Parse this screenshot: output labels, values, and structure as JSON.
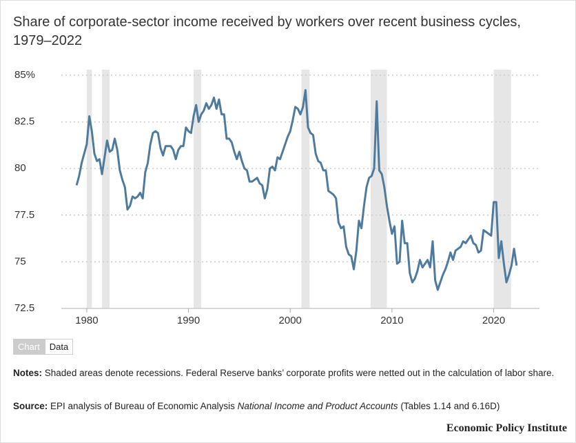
{
  "chart_data": {
    "type": "line",
    "title": "Share of corporate-sector income received by workers over recent business cycles, 1979–2022",
    "x": [
      1979,
      1979.25,
      1979.5,
      1979.75,
      1980,
      1980.25,
      1980.5,
      1980.75,
      1981,
      1981.25,
      1981.5,
      1981.75,
      1982,
      1982.25,
      1982.5,
      1982.75,
      1983,
      1983.25,
      1983.5,
      1983.75,
      1984,
      1984.25,
      1984.5,
      1984.75,
      1985,
      1985.25,
      1985.5,
      1985.75,
      1986,
      1986.25,
      1986.5,
      1986.75,
      1987,
      1987.25,
      1987.5,
      1987.75,
      1988,
      1988.25,
      1988.5,
      1988.75,
      1989,
      1989.25,
      1989.5,
      1989.75,
      1990,
      1990.25,
      1990.5,
      1990.75,
      1991,
      1991.25,
      1991.5,
      1991.75,
      1992,
      1992.25,
      1992.5,
      1992.75,
      1993,
      1993.25,
      1993.5,
      1993.75,
      1994,
      1994.25,
      1994.5,
      1994.75,
      1995,
      1995.25,
      1995.5,
      1995.75,
      1996,
      1996.25,
      1996.5,
      1996.75,
      1997,
      1997.25,
      1997.5,
      1997.75,
      1998,
      1998.25,
      1998.5,
      1998.75,
      1999,
      1999.25,
      1999.5,
      1999.75,
      2000,
      2000.25,
      2000.5,
      2000.75,
      2001,
      2001.25,
      2001.5,
      2001.75,
      2002,
      2002.25,
      2002.5,
      2002.75,
      2003,
      2003.25,
      2003.5,
      2003.75,
      2004,
      2004.25,
      2004.5,
      2004.75,
      2005,
      2005.25,
      2005.5,
      2005.75,
      2006,
      2006.25,
      2006.5,
      2006.75,
      2007,
      2007.25,
      2007.5,
      2007.75,
      2008,
      2008.25,
      2008.5,
      2008.75,
      2009,
      2009.25,
      2009.5,
      2009.75,
      2010,
      2010.25,
      2010.5,
      2010.75,
      2011,
      2011.25,
      2011.5,
      2011.75,
      2012,
      2012.25,
      2012.5,
      2012.75,
      2013,
      2013.25,
      2013.5,
      2013.75,
      2014,
      2014.25,
      2014.5,
      2014.75,
      2015,
      2015.25,
      2015.5,
      2015.75,
      2016,
      2016.25,
      2016.5,
      2016.75,
      2017,
      2017.25,
      2017.5,
      2017.75,
      2018,
      2018.25,
      2018.5,
      2018.75,
      2019,
      2019.25,
      2019.5,
      2019.75,
      2020,
      2020.25,
      2020.5,
      2020.75,
      2021,
      2021.25,
      2021.5,
      2021.75,
      2022,
      2022.25
    ],
    "series": [
      {
        "name": "Labor share",
        "color": "#4e7a9e",
        "values": [
          79.1,
          79.6,
          80.3,
          80.8,
          81.3,
          82.8,
          82.0,
          80.8,
          80.4,
          80.5,
          79.7,
          80.6,
          81.5,
          80.9,
          81.0,
          81.6,
          81.0,
          79.9,
          79.4,
          79.0,
          77.8,
          78.0,
          78.5,
          78.4,
          78.5,
          78.7,
          78.4,
          79.8,
          80.3,
          81.3,
          81.9,
          82.0,
          81.9,
          81.1,
          80.7,
          81.2,
          81.2,
          81.2,
          81.0,
          80.5,
          81.0,
          81.2,
          81.2,
          82.2,
          82.0,
          81.9,
          82.8,
          83.4,
          82.5,
          82.9,
          83.1,
          83.5,
          83.2,
          83.4,
          83.8,
          83.2,
          83.7,
          82.9,
          82.9,
          81.6,
          81.6,
          81.4,
          80.9,
          80.5,
          80.9,
          80.4,
          80.0,
          79.9,
          79.3,
          79.3,
          79.4,
          79.5,
          79.2,
          79.1,
          78.4,
          78.9,
          80.0,
          80.1,
          79.9,
          80.6,
          80.5,
          80.9,
          81.3,
          81.7,
          82.0,
          82.6,
          83.3,
          83.2,
          82.9,
          83.3,
          84.2,
          82.2,
          81.9,
          81.8,
          80.8,
          80.4,
          80.3,
          79.9,
          79.9,
          78.8,
          78.7,
          78.6,
          78.4,
          77.1,
          76.8,
          76.9,
          75.8,
          75.4,
          75.3,
          74.6,
          75.6,
          77.2,
          76.8,
          78.0,
          79.0,
          79.5,
          79.6,
          80.0,
          83.6,
          79.9,
          79.7,
          79.0,
          78.0,
          77.2,
          76.5,
          76.9,
          74.9,
          75.0,
          77.2,
          76.0,
          76.0,
          74.4,
          73.9,
          74.1,
          74.5,
          75.1,
          74.7,
          74.9,
          75.1,
          74.7,
          76.1,
          74.0,
          73.5,
          73.9,
          74.3,
          74.6,
          75.0,
          75.5,
          75.1,
          75.6,
          75.7,
          75.8,
          76.1,
          76.0,
          76.2,
          76.4,
          76.0,
          75.9,
          75.5,
          75.6,
          76.7,
          76.6,
          76.5,
          76.4,
          78.2,
          78.2,
          75.2,
          76.1,
          74.9,
          73.9,
          74.3,
          74.8,
          75.7,
          74.8
        ]
      }
    ],
    "recessions": [
      {
        "start": 1980.0,
        "end": 1980.5
      },
      {
        "start": 1981.5,
        "end": 1982.25
      },
      {
        "start": 1990.5,
        "end": 1991.25
      },
      {
        "start": 2001.1,
        "end": 2001.9
      },
      {
        "start": 2007.9,
        "end": 2009.5
      },
      {
        "start": 2020.0,
        "end": 2021.7
      }
    ],
    "recession_color": "#e6e6e6",
    "xlim": [
      1977.5,
      2024.5
    ],
    "xticks": [
      1980,
      1990,
      2000,
      2010,
      2020
    ],
    "ylim": [
      72.5,
      85
    ],
    "yticks": [
      72.5,
      75,
      77.5,
      80,
      82.5,
      {
        "value": 85,
        "label": "85%"
      }
    ],
    "grid": true
  },
  "tabs": [
    "Chart",
    "Data"
  ],
  "notes": {
    "label": "Notes:",
    "text": "Shaded areas denote recessions. Federal Reserve banks’ corporate profits were netted out in the calculation of labor share."
  },
  "source": {
    "label": "Source:",
    "text_before": "EPI analysis of Bureau of Economic Analysis ",
    "italic": "National Income and Product Accounts",
    "text_after": " (Tables 1.14 and 6.16D)"
  },
  "footer": "Economic Policy Institute"
}
